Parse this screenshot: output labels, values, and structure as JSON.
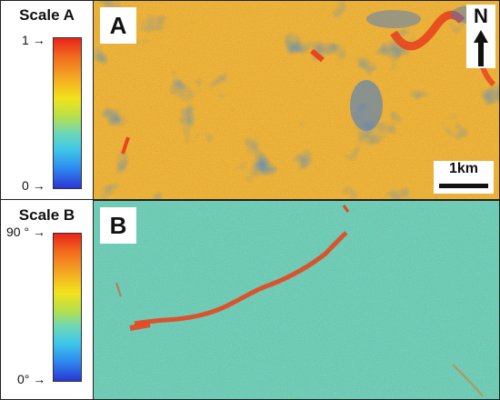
{
  "scale_a": {
    "title": "Scale A",
    "max_label": "1",
    "min_label": "0",
    "arrow": "→",
    "colormap": [
      "#e8231a",
      "#f4a622",
      "#f2e21c",
      "#6fd7b4",
      "#3fc8e8",
      "#2a36d4"
    ]
  },
  "scale_b": {
    "title": "Scale B",
    "max_label": "90 °",
    "min_label": "0°",
    "arrow": "→"
  },
  "panel_a": {
    "label": "A",
    "north_label": "N",
    "north_icon": "north-arrow-icon",
    "scale_bar_label": "1km"
  },
  "panel_b": {
    "label": "B"
  }
}
